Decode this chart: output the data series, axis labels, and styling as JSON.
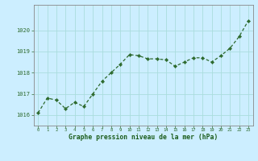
{
  "x": [
    0,
    1,
    2,
    3,
    4,
    5,
    6,
    7,
    8,
    9,
    10,
    11,
    12,
    13,
    14,
    15,
    16,
    17,
    18,
    19,
    20,
    21,
    22,
    23
  ],
  "y": [
    1016.1,
    1016.8,
    1016.7,
    1016.3,
    1016.6,
    1016.4,
    1017.0,
    1017.6,
    1018.0,
    1018.4,
    1018.85,
    1018.8,
    1018.65,
    1018.65,
    1018.6,
    1018.3,
    1018.5,
    1018.7,
    1018.7,
    1018.5,
    1018.8,
    1019.15,
    1019.7,
    1020.45
  ],
  "line_color": "#2d6a2d",
  "marker_color": "#2d6a2d",
  "bg_color": "#cceeff",
  "grid_color": "#aadddd",
  "xlabel": "Graphe pression niveau de la mer (hPa)",
  "xlabel_color": "#1a5c1a",
  "tick_label_color": "#2d6a2d",
  "ytick_labels": [
    "1016",
    "1017",
    "1018",
    "1019",
    "1020"
  ],
  "ytick_values": [
    1016,
    1017,
    1018,
    1019,
    1020
  ],
  "ylim": [
    1015.5,
    1021.2
  ],
  "xlim": [
    -0.5,
    23.5
  ],
  "axis_spine_color": "#888888"
}
